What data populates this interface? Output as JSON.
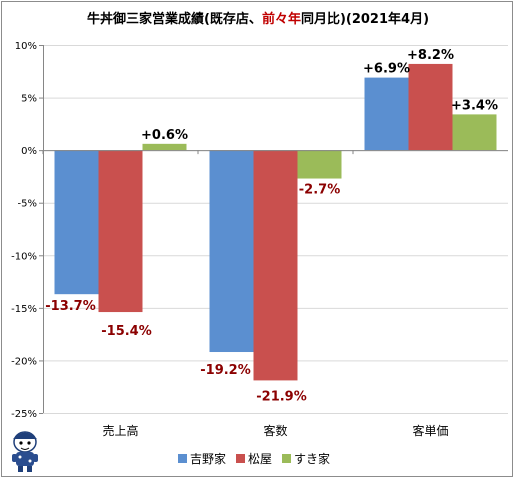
{
  "title": {
    "pre": "牛丼御三家営業成績(既存店、",
    "highlight": "前々年",
    "post": "同月比)(2021年4月)",
    "highlight_color": "#c00000"
  },
  "colors": {
    "label": "#000000",
    "label_negative": "#8b0000",
    "grid": "#d9d9d9",
    "axis": "#868686"
  },
  "chart_data": {
    "type": "bar",
    "title": "牛丼御三家営業成績(既存店、前々年同月比)(2021年4月)",
    "categories": [
      "売上高",
      "客数",
      "客単価"
    ],
    "ylim": [
      -25,
      10
    ],
    "yticks": [
      10,
      5,
      0,
      -5,
      -10,
      -15,
      -20,
      -25
    ],
    "ytick_labels": [
      "10%",
      "5%",
      "0%",
      "-5%",
      "-10%",
      "-15%",
      "-20%",
      "-25%"
    ],
    "grid": true,
    "legend_position": "bottom",
    "series": [
      {
        "name": "吉野家",
        "color": "#5b8fd0",
        "values": [
          -13.7,
          -19.2,
          6.9
        ],
        "labels": [
          "-13.7%",
          "-19.2%",
          "+6.9%"
        ]
      },
      {
        "name": "松屋",
        "color": "#c9504e",
        "values": [
          -15.4,
          -21.9,
          8.2
        ],
        "labels": [
          "-15.4%",
          "-21.9%",
          "+8.2%"
        ]
      },
      {
        "name": "すき家",
        "color": "#9bbb59",
        "values": [
          0.6,
          -2.7,
          3.4
        ],
        "labels": [
          "+0.6%",
          "-2.7%",
          "+3.4%"
        ]
      }
    ]
  }
}
